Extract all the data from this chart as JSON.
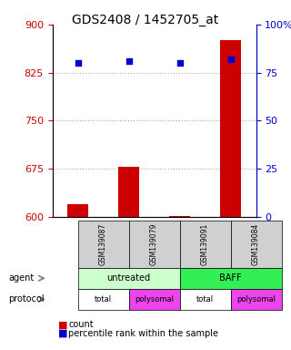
{
  "title": "GDS2408 / 1452705_at",
  "samples": [
    "GSM139087",
    "GSM139079",
    "GSM139091",
    "GSM139084"
  ],
  "counts": [
    620,
    678,
    602,
    875
  ],
  "percentiles": [
    80,
    81,
    80,
    82
  ],
  "ylim_left": [
    600,
    900
  ],
  "ylim_right": [
    0,
    100
  ],
  "yticks_left": [
    600,
    675,
    750,
    825,
    900
  ],
  "yticks_right": [
    0,
    25,
    50,
    75,
    100
  ],
  "ytick_labels_right": [
    "0",
    "25",
    "50",
    "75",
    "100%"
  ],
  "bar_color": "#cc0000",
  "scatter_color": "#0000cc",
  "agent_colors": [
    "#ccffcc",
    "#33ee55"
  ],
  "protocol_labels": [
    "total",
    "polysomal",
    "total",
    "polysomal"
  ],
  "protocol_colors": [
    "#ffffff",
    "#ee44ee",
    "#ffffff",
    "#ee44ee"
  ],
  "left_axis_color": "#cc0000",
  "right_axis_color": "#0000cc",
  "grid_color": "#aaaaaa",
  "bar_width": 0.4
}
